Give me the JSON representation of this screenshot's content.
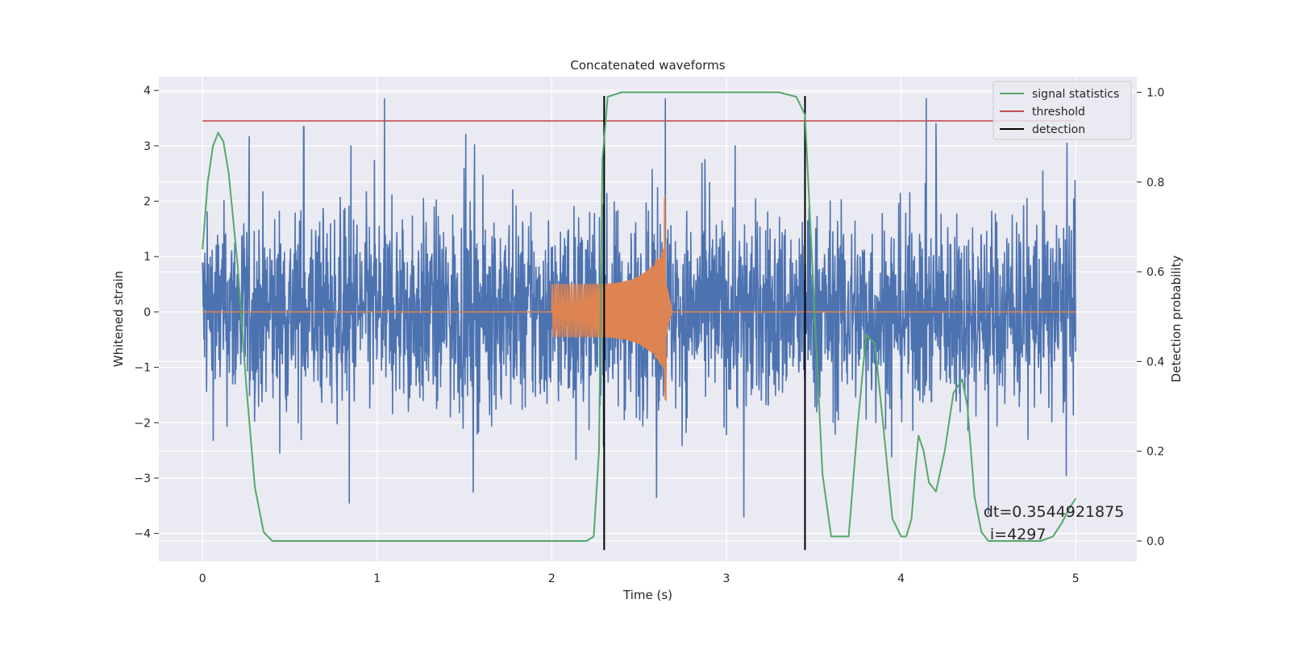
{
  "chart_data": {
    "type": "line",
    "title": "Concatenated waveforms",
    "xlabel": "Time (s)",
    "ylabel": "Whitened strain",
    "ylabel_right": "Detection probability",
    "xlim": [
      -0.25,
      5.35
    ],
    "ylim": [
      -4.5,
      4.25
    ],
    "ylim_right": [
      -0.045,
      1.035
    ],
    "x_ticks": [
      0,
      1,
      2,
      3,
      4,
      5
    ],
    "y_ticks": [
      -4,
      -3,
      -2,
      -1,
      0,
      1,
      2,
      3,
      4
    ],
    "y_ticks_right": [
      0.0,
      0.2,
      0.4,
      0.6,
      0.8,
      1.0
    ],
    "grid": true,
    "legend_position": "top-right",
    "legend": [
      {
        "label": "signal statistics",
        "color": "#55a868"
      },
      {
        "label": "threshold",
        "color": "#c44e52"
      },
      {
        "label": "detection",
        "color": "#000000"
      }
    ],
    "annotation": {
      "line1": "dt=0.3544921875",
      "line2": "i=4297",
      "x": 4.5,
      "y": -3.7
    },
    "series": [
      {
        "color": "#4c72b0",
        "axis": "left",
        "kind": "noise",
        "x_range": [
          0,
          5
        ],
        "approx_range": [
          -3.7,
          3.85
        ],
        "peaks": [
          [
            0.58,
            3.35
          ],
          [
            2.65,
            3.85
          ],
          [
            4.2,
            3.4
          ],
          [
            4.95,
            3.05
          ],
          [
            0.85,
            3.0
          ],
          [
            3.05,
            3.0
          ],
          [
            0.84,
            -3.45
          ],
          [
            1.55,
            -3.25
          ],
          [
            2.6,
            -3.35
          ],
          [
            3.1,
            -3.7
          ],
          [
            4.5,
            -3.65
          ]
        ]
      },
      {
        "color": "#dd8452",
        "axis": "left",
        "kind": "chirp",
        "x_range": [
          0,
          5
        ],
        "chirp_start": 2.0,
        "chirp_peak": 2.65,
        "chirp_end": 2.68,
        "start_amplitude": 0.5,
        "peak_amplitude": [
          2.2,
          -1.6
        ]
      },
      {
        "color": "#55a868",
        "axis": "right",
        "kind": "line",
        "x": [
          0.0,
          0.03,
          0.06,
          0.09,
          0.12,
          0.15,
          0.2,
          0.25,
          0.3,
          0.35,
          0.4,
          1.0,
          2.2,
          2.24,
          2.27,
          2.29,
          2.32,
          2.4,
          3.3,
          3.4,
          3.45,
          3.5,
          3.55,
          3.6,
          3.7,
          3.75,
          3.8,
          3.85,
          3.9,
          3.95,
          4.0,
          4.03,
          4.06,
          4.08,
          4.1,
          4.13,
          4.16,
          4.2,
          4.25,
          4.3,
          4.35,
          4.38,
          4.42,
          4.46,
          4.5,
          4.55,
          4.6,
          4.8,
          4.87,
          4.92,
          4.96,
          5.0
        ],
        "y": [
          0.65,
          0.8,
          0.88,
          0.91,
          0.89,
          0.82,
          0.62,
          0.35,
          0.12,
          0.02,
          0.0,
          0.0,
          0.0,
          0.01,
          0.2,
          0.85,
          0.99,
          1.0,
          1.0,
          0.99,
          0.95,
          0.55,
          0.15,
          0.01,
          0.01,
          0.25,
          0.46,
          0.44,
          0.25,
          0.05,
          0.01,
          0.01,
          0.05,
          0.15,
          0.235,
          0.2,
          0.13,
          0.11,
          0.2,
          0.33,
          0.36,
          0.3,
          0.1,
          0.02,
          0.0,
          0.0,
          0.0,
          0.0,
          0.01,
          0.04,
          0.07,
          0.095
        ]
      },
      {
        "color": "#c44e52",
        "axis": "left",
        "kind": "hline",
        "y": 3.45,
        "x_range": [
          0,
          5
        ]
      },
      {
        "color": "#000000",
        "axis": "left",
        "kind": "vlines",
        "x": [
          2.3,
          3.45
        ],
        "y_range": [
          -4.3,
          3.9
        ]
      }
    ]
  }
}
